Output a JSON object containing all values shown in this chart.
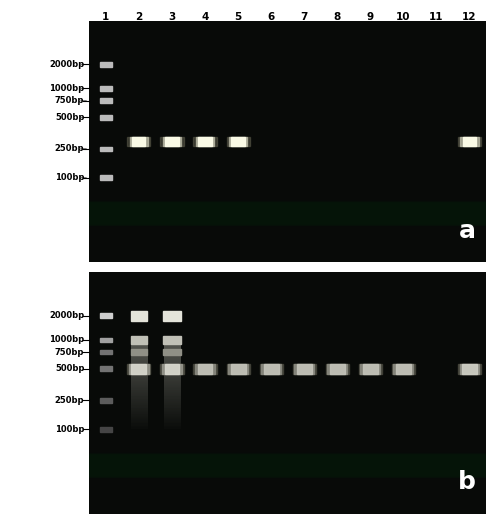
{
  "fig_width": 4.96,
  "fig_height": 5.24,
  "bg_color": "#ffffff",
  "gel_bg": "#0a0a0a",
  "lane_numbers": [
    "1",
    "2",
    "3",
    "4",
    "5",
    "6",
    "7",
    "8",
    "9",
    "10",
    "11",
    "12"
  ],
  "labels_a": [
    "2000bp",
    "1000bp",
    "750bp",
    "500bp",
    "250bp",
    "100bp"
  ],
  "labels_b": [
    "2000bp",
    "1000bp",
    "750bp",
    "500bp",
    "250bp",
    "100bp"
  ],
  "panel_a_label": "a",
  "panel_b_label": "b",
  "marker_color_a": "#cccccc",
  "band_color_bright": "#e8e8e0",
  "band_color_medium": "#c0c0b0",
  "band_color_dim": "#909080"
}
